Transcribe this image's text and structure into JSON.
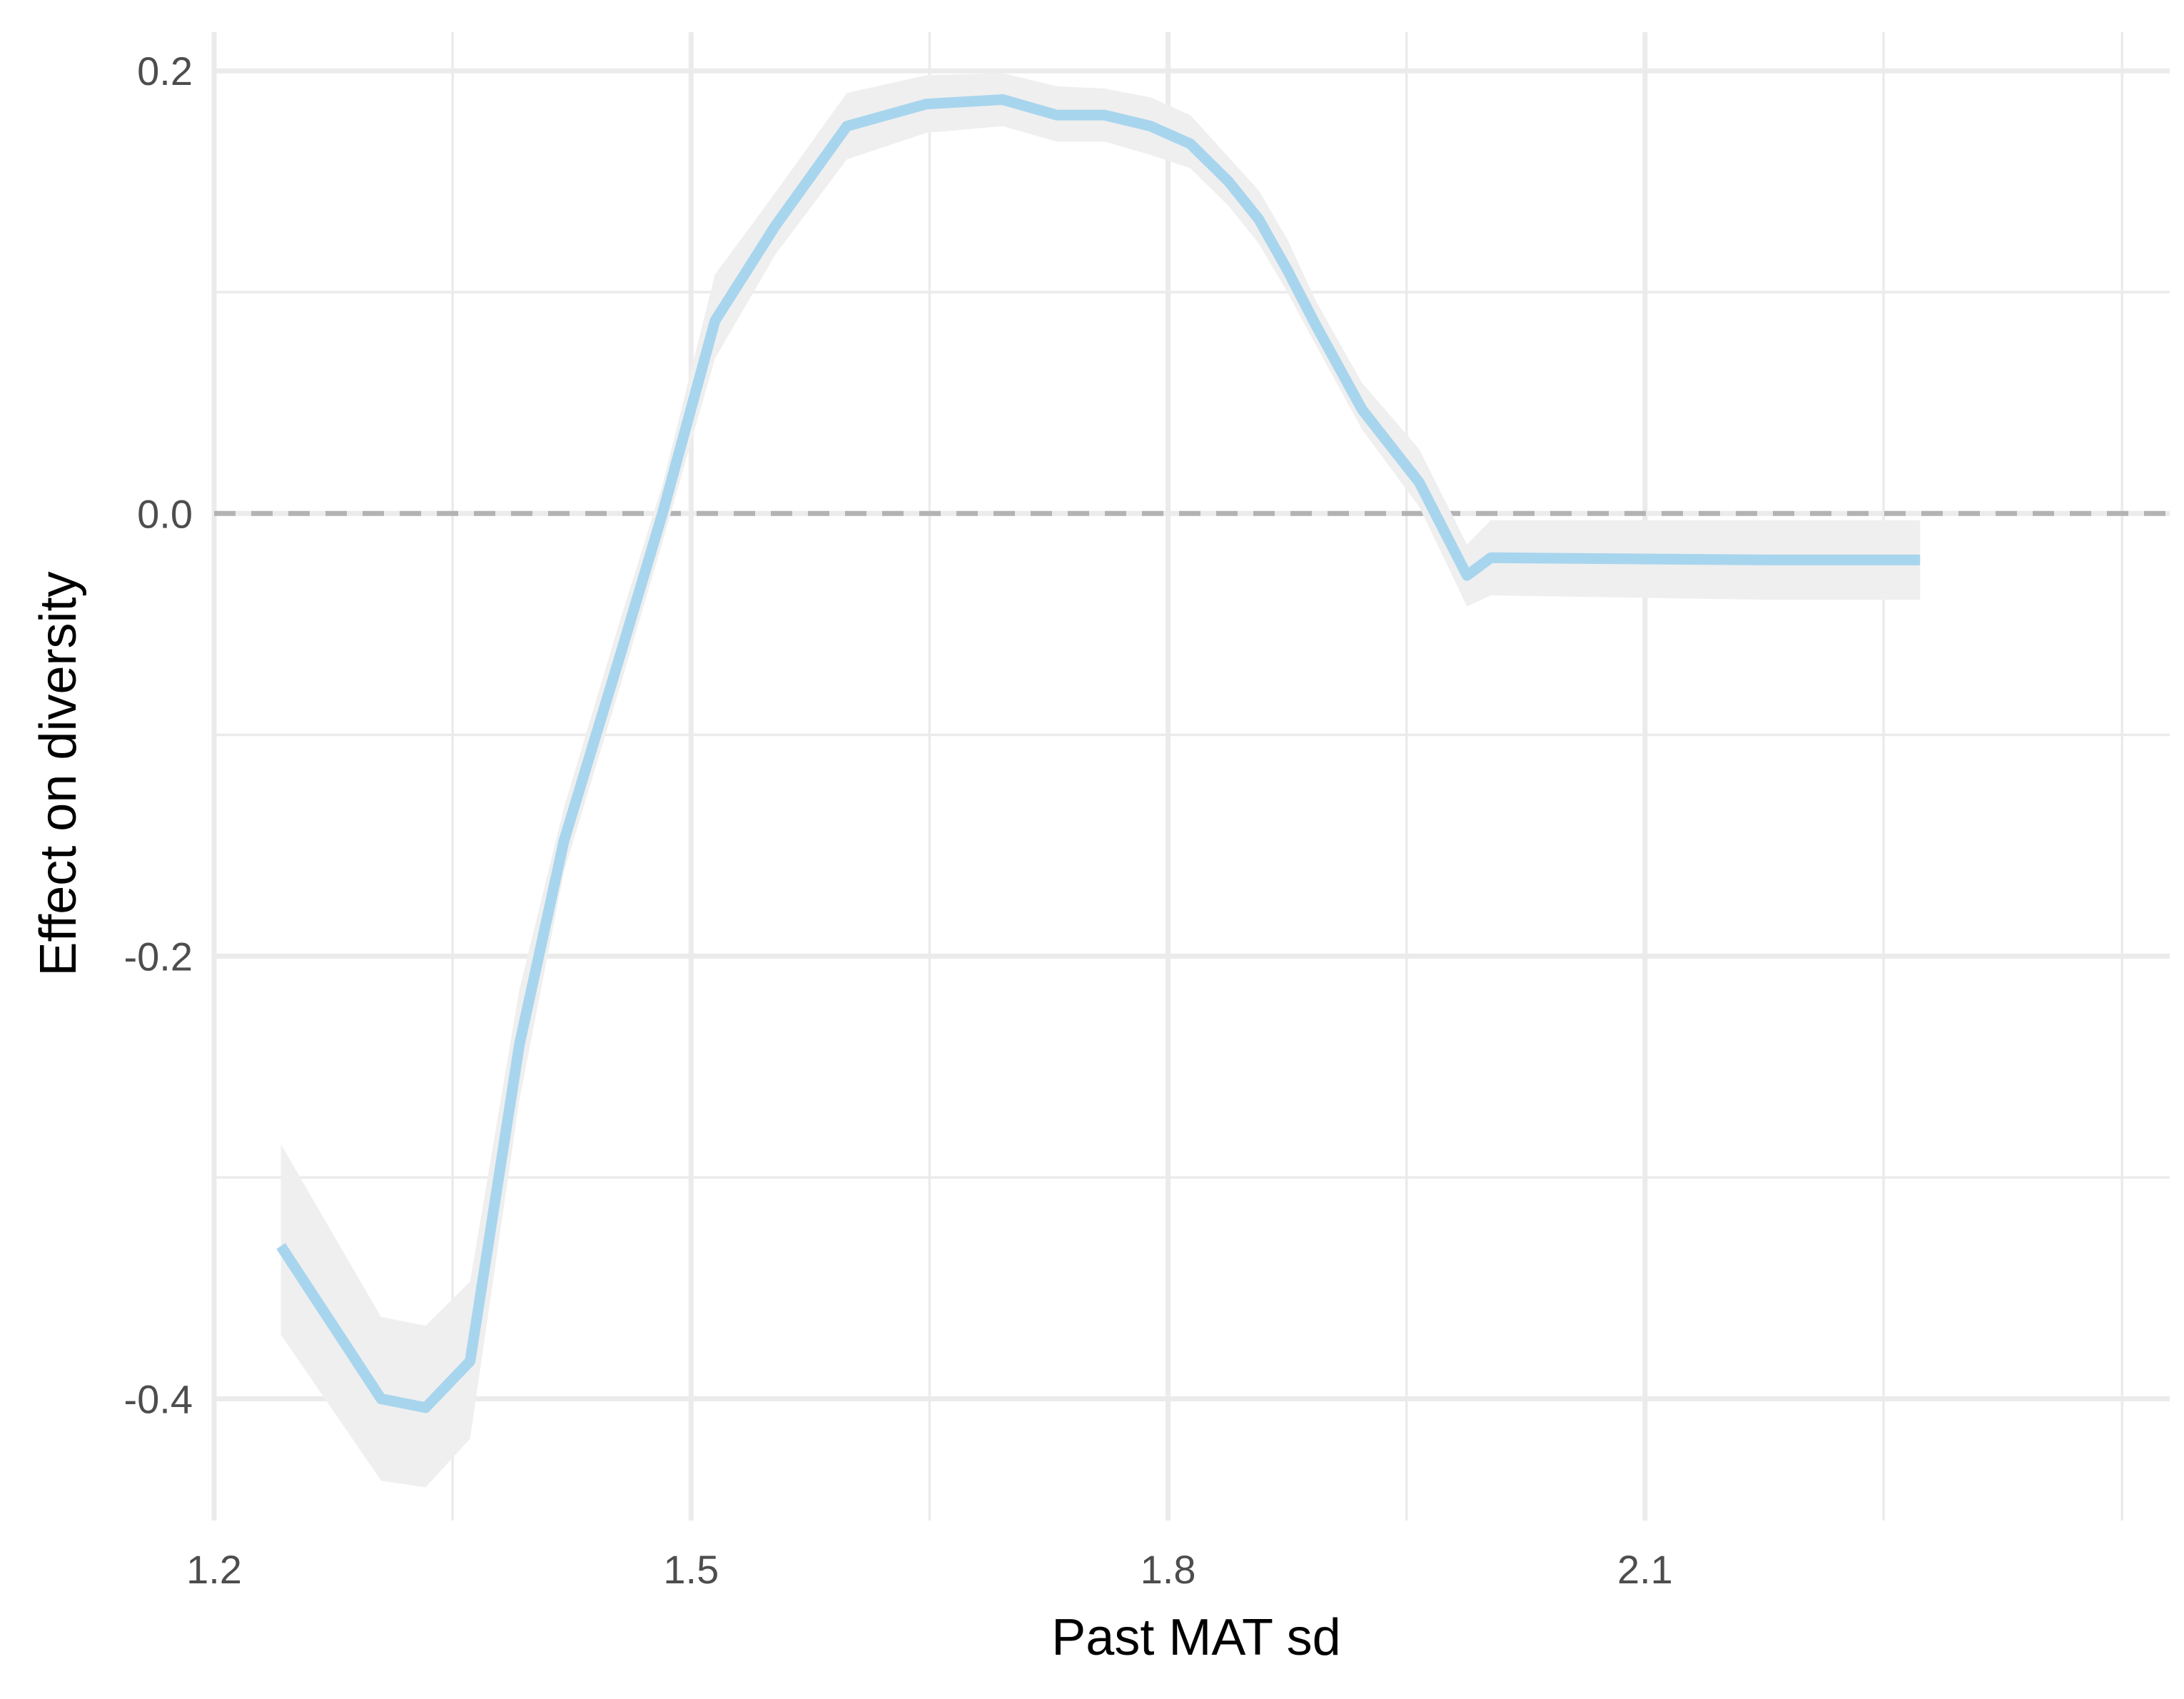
{
  "chart_data": {
    "type": "line",
    "xlabel": "Past MAT sd",
    "ylabel": "Effect on diversity",
    "xlim": [
      1.2,
      2.43
    ],
    "ylim": [
      -0.455,
      0.232
    ],
    "x_ticks": [
      1.2,
      1.5,
      1.8,
      2.1
    ],
    "x_tick_labels": [
      "1.2",
      "1.5",
      "1.8",
      "2.1"
    ],
    "y_ticks": [
      -0.4,
      -0.2,
      0.0,
      0.2
    ],
    "y_tick_labels": [
      "-0.4",
      "-0.2",
      "0.0",
      "0.2"
    ],
    "grid": true,
    "reference_line": {
      "y": 0.0,
      "style": "dashed",
      "color": "#b3b3b3"
    },
    "line_color": "#a8d5ee",
    "band_color": "#efefef",
    "series": [
      {
        "x": [
          1.242,
          1.305,
          1.333,
          1.361,
          1.392,
          1.42,
          1.455,
          1.482,
          1.515,
          1.553,
          1.598,
          1.648,
          1.696,
          1.73,
          1.76,
          1.789,
          1.814,
          1.838,
          1.857,
          1.875,
          1.893,
          1.922,
          1.958,
          1.988,
          2.003,
          2.178,
          2.273
        ],
        "y": [
          -0.331,
          -0.4,
          -0.404,
          -0.383,
          -0.24,
          -0.148,
          -0.065,
          0.0,
          0.087,
          0.13,
          0.175,
          0.185,
          0.187,
          0.18,
          0.18,
          0.175,
          0.167,
          0.15,
          0.133,
          0.11,
          0.085,
          0.047,
          0.014,
          -0.028,
          -0.02,
          -0.021,
          -0.021
        ],
        "lower": [
          -0.371,
          -0.437,
          -0.44,
          -0.418,
          -0.265,
          -0.162,
          -0.079,
          -0.013,
          0.07,
          0.117,
          0.16,
          0.172,
          0.175,
          0.168,
          0.168,
          0.162,
          0.156,
          0.139,
          0.122,
          0.1,
          0.076,
          0.038,
          0.003,
          -0.042,
          -0.037,
          -0.039,
          -0.039
        ],
        "upper": [
          -0.285,
          -0.363,
          -0.367,
          -0.347,
          -0.215,
          -0.133,
          -0.049,
          0.013,
          0.108,
          0.145,
          0.19,
          0.198,
          0.199,
          0.193,
          0.192,
          0.188,
          0.18,
          0.161,
          0.146,
          0.124,
          0.096,
          0.059,
          0.029,
          -0.014,
          -0.003,
          -0.003,
          -0.003
        ]
      }
    ]
  }
}
